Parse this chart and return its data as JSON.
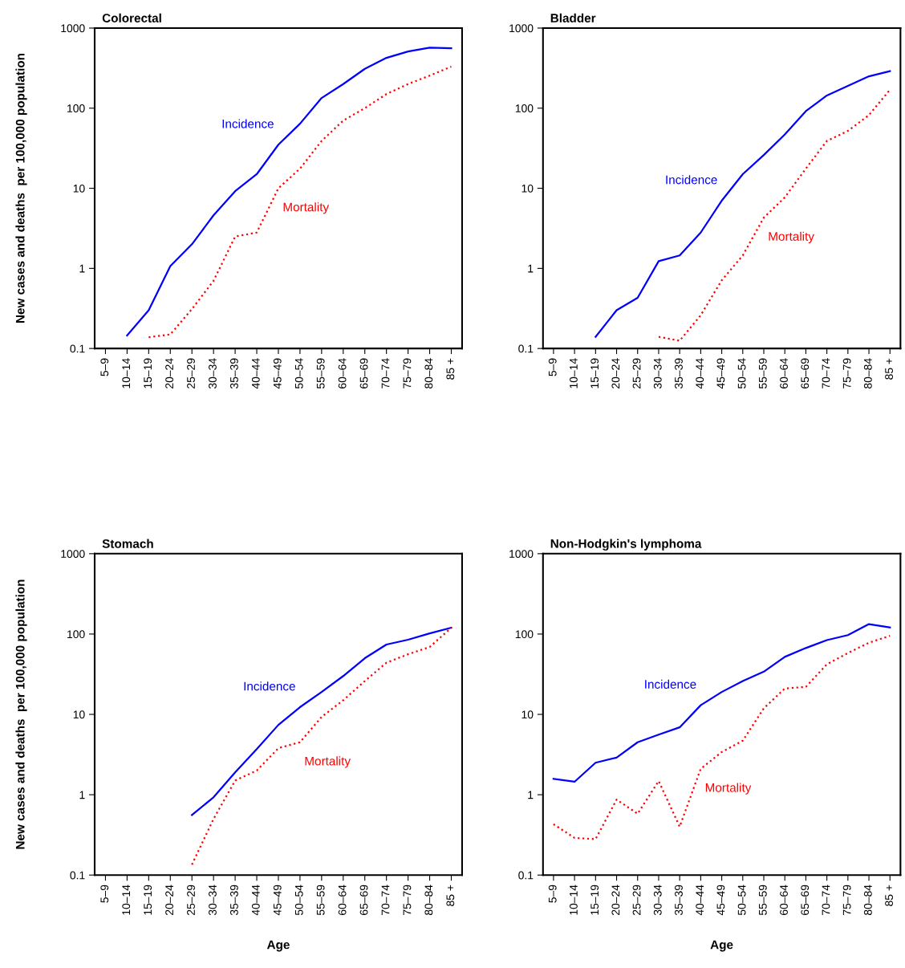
{
  "chart_data": [
    {
      "type": "line",
      "title": "Colorectal",
      "ylabel": "New cases and deaths  per 100,000 population",
      "log": "y",
      "ylim": [
        0.1,
        1000
      ],
      "yticks": [
        0.1,
        1,
        10,
        100,
        1000
      ],
      "categories": [
        "5–9",
        "10–14",
        "15–19",
        "20–24",
        "25–29",
        "30–34",
        "35–39",
        "40–44",
        "45–49",
        "50–54",
        "55–59",
        "60–64",
        "65–69",
        "70–74",
        "75–79",
        "80–84",
        "85 +"
      ],
      "series": [
        {
          "name": "Incidence",
          "color": "#0000ff",
          "line_style": "solid",
          "values": [
            null,
            0.145,
            0.3,
            1.07,
            2.0,
            4.6,
            9.2,
            15,
            35,
            64,
            134,
            200,
            310,
            425,
            510,
            570,
            560
          ]
        },
        {
          "name": "Mortality",
          "color": "#ff0000",
          "line_style": "dotted",
          "values": [
            null,
            null,
            0.138,
            0.15,
            0.31,
            0.7,
            2.5,
            2.8,
            10,
            17.6,
            39,
            70,
            100,
            150,
            200,
            255,
            330
          ]
        }
      ]
    },
    {
      "type": "line",
      "title": "Bladder",
      "log": "y",
      "ylim": [
        0.1,
        1000
      ],
      "yticks": [
        0.1,
        1,
        10,
        100,
        1000
      ],
      "categories": [
        "5–9",
        "10–14",
        "15–19",
        "20–24",
        "25–29",
        "30–34",
        "35–39",
        "40–44",
        "45–49",
        "50–54",
        "55–59",
        "60–64",
        "65–69",
        "70–74",
        "75–79",
        "80–84",
        "85 +"
      ],
      "series": [
        {
          "name": "Incidence",
          "color": "#0000ff",
          "line_style": "solid",
          "values": [
            null,
            null,
            0.14,
            0.3,
            0.43,
            1.23,
            1.45,
            2.8,
            7,
            15,
            26,
            47,
            92,
            144,
            190,
            250,
            290
          ]
        },
        {
          "name": "Mortality",
          "color": "#ff0000",
          "line_style": "dotted",
          "values": [
            null,
            null,
            null,
            null,
            null,
            0.14,
            0.125,
            0.26,
            0.71,
            1.45,
            4.3,
            7.7,
            17.6,
            39,
            52,
            82,
            170
          ]
        }
      ]
    },
    {
      "type": "line",
      "title": "Stomach",
      "ylabel": "New cases and deaths  per 100,000 population",
      "xlabel": "Age",
      "log": "y",
      "ylim": [
        0.1,
        1000
      ],
      "yticks": [
        0.1,
        1,
        10,
        100,
        1000
      ],
      "categories": [
        "5–9",
        "10–14",
        "15–19",
        "20–24",
        "25–29",
        "30–34",
        "35–39",
        "40–44",
        "45–49",
        "50–54",
        "55–59",
        "60–64",
        "65–69",
        "70–74",
        "75–79",
        "80–84",
        "85 +"
      ],
      "series": [
        {
          "name": "Incidence",
          "color": "#0000ff",
          "line_style": "solid",
          "values": [
            null,
            null,
            null,
            null,
            0.56,
            0.93,
            1.9,
            3.7,
            7.4,
            12.3,
            19,
            30,
            50,
            74,
            85,
            102,
            120
          ]
        },
        {
          "name": "Mortality",
          "color": "#ff0000",
          "line_style": "dotted",
          "values": [
            null,
            null,
            null,
            null,
            0.135,
            0.5,
            1.5,
            2.0,
            3.8,
            4.5,
            9.3,
            15,
            26,
            44,
            56,
            69,
            120
          ]
        }
      ]
    },
    {
      "type": "line",
      "title": "Non-Hodgkin's lymphoma",
      "xlabel": "Age",
      "log": "y",
      "ylim": [
        0.1,
        1000
      ],
      "yticks": [
        0.1,
        1,
        10,
        100,
        1000
      ],
      "categories": [
        "5–9",
        "10–14",
        "15–19",
        "20–24",
        "25–29",
        "30–34",
        "35–39",
        "40–44",
        "45–49",
        "50–54",
        "55–59",
        "60–64",
        "65–69",
        "70–74",
        "75–79",
        "80–84",
        "85 +"
      ],
      "series": [
        {
          "name": "Incidence",
          "color": "#0000ff",
          "line_style": "solid",
          "values": [
            1.58,
            1.45,
            2.5,
            2.9,
            4.5,
            5.6,
            6.9,
            13,
            19,
            26,
            34,
            52,
            67,
            84,
            97,
            133,
            121
          ]
        },
        {
          "name": "Mortality",
          "color": "#ff0000",
          "line_style": "dotted",
          "values": [
            0.43,
            0.29,
            0.28,
            0.87,
            0.58,
            1.48,
            0.4,
            2.1,
            3.4,
            4.7,
            11.9,
            21,
            22,
            42,
            58,
            78,
            95
          ]
        }
      ]
    }
  ]
}
